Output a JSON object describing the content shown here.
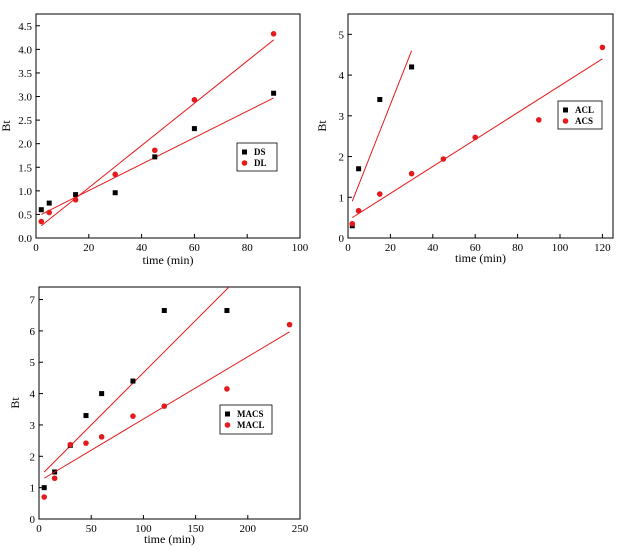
{
  "chart_data": [
    {
      "type": "scatter",
      "xlabel": "time (min)",
      "ylabel": "Bt",
      "xlim": [
        0,
        100
      ],
      "ylim": [
        0,
        4.75
      ],
      "xticks": [
        0,
        20,
        40,
        60,
        80,
        100
      ],
      "yticks": [
        0.0,
        0.5,
        1.0,
        1.5,
        2.0,
        2.5,
        3.0,
        3.5,
        4.0,
        4.5
      ],
      "legend_position": "right",
      "series": [
        {
          "name": "DS",
          "marker": "square",
          "color": "#000000",
          "x": [
            2,
            5,
            15,
            30,
            45,
            60,
            90
          ],
          "y": [
            0.6,
            0.74,
            0.92,
            0.96,
            1.72,
            2.32,
            3.07
          ],
          "fit": [
            [
              2,
              0.5
            ],
            [
              90,
              2.97
            ]
          ]
        },
        {
          "name": "DL",
          "marker": "circle",
          "color": "#e41a1c",
          "x": [
            2,
            5,
            15,
            30,
            45,
            60,
            90
          ],
          "y": [
            0.35,
            0.54,
            0.81,
            1.35,
            1.86,
            2.93,
            4.33
          ],
          "fit": [
            [
              2,
              0.26
            ],
            [
              90,
              4.2
            ]
          ]
        }
      ]
    },
    {
      "type": "scatter",
      "xlabel": "time (min)",
      "ylabel": "Bt",
      "xlim": [
        0,
        125
      ],
      "ylim": [
        0,
        5.5
      ],
      "xticks": [
        0,
        20,
        40,
        60,
        80,
        100,
        120
      ],
      "yticks": [
        0,
        1,
        2,
        3,
        4,
        5
      ],
      "legend_position": "right",
      "series": [
        {
          "name": "ACL",
          "marker": "square",
          "color": "#000000",
          "x": [
            2,
            5,
            15,
            30
          ],
          "y": [
            0.3,
            1.7,
            3.4,
            4.2
          ],
          "fit": [
            [
              2,
              0.9
            ],
            [
              30,
              4.6
            ]
          ]
        },
        {
          "name": "ACS",
          "marker": "circle",
          "color": "#e41a1c",
          "x": [
            2,
            5,
            15,
            30,
            45,
            60,
            90,
            120
          ],
          "y": [
            0.35,
            0.67,
            1.08,
            1.58,
            1.94,
            2.47,
            2.9,
            4.68
          ],
          "fit": [
            [
              2,
              0.5
            ],
            [
              120,
              4.4
            ]
          ]
        }
      ]
    },
    {
      "type": "scatter",
      "xlabel": "time (min)",
      "ylabel": "Bt",
      "xlim": [
        0,
        250
      ],
      "ylim": [
        0,
        7.4
      ],
      "xticks": [
        0,
        50,
        100,
        150,
        200,
        250
      ],
      "yticks": [
        0,
        1,
        2,
        3,
        4,
        5,
        6,
        7
      ],
      "legend_position": "right",
      "series": [
        {
          "name": "MACS",
          "marker": "square",
          "color": "#000000",
          "x": [
            5,
            15,
            30,
            45,
            60,
            90,
            120,
            180
          ],
          "y": [
            1.0,
            1.5,
            2.35,
            3.3,
            4.0,
            4.4,
            6.65,
            6.65
          ],
          "fit": [
            [
              5,
              1.5
            ],
            [
              182,
              7.4
            ]
          ]
        },
        {
          "name": "MACL",
          "marker": "circle",
          "color": "#e41a1c",
          "x": [
            5,
            15,
            30,
            45,
            60,
            90,
            120,
            180,
            240
          ],
          "y": [
            0.7,
            1.3,
            2.37,
            2.42,
            2.62,
            3.28,
            3.6,
            4.15,
            6.2
          ],
          "fit": [
            [
              5,
              1.3
            ],
            [
              240,
              5.97
            ]
          ]
        }
      ]
    }
  ]
}
